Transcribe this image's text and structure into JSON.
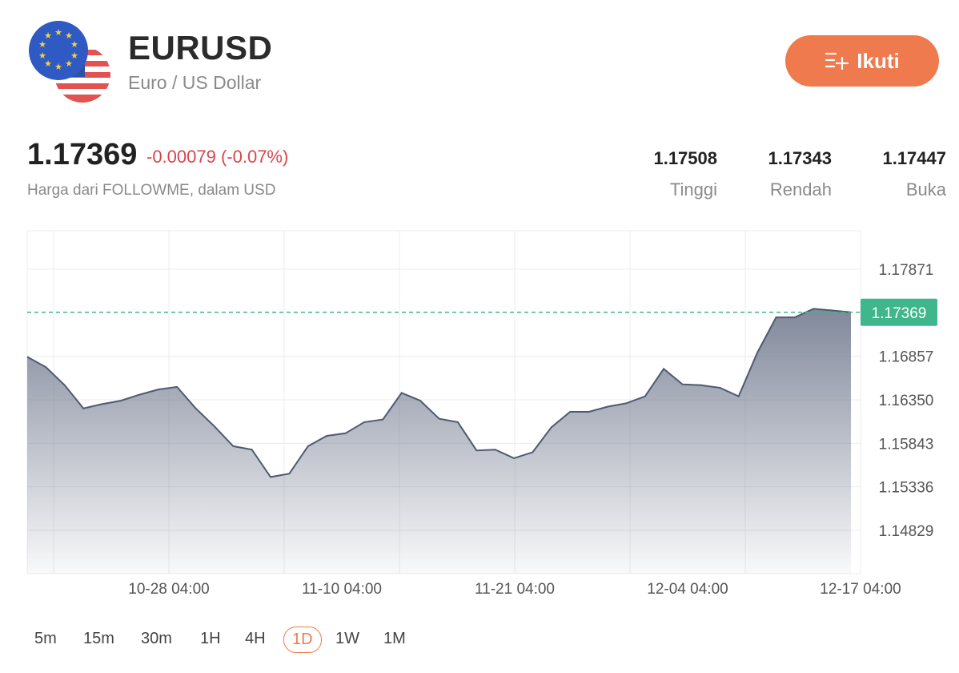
{
  "header": {
    "symbol": "EURUSD",
    "name": "Euro / US Dollar",
    "follow_label": "Ikuti"
  },
  "quote": {
    "price": "1.17369",
    "change": "-0.00079 (-0.07%)",
    "source": "Harga dari FOLLOWME, dalam USD"
  },
  "stats": [
    {
      "value": "1.17508",
      "label": "Tinggi"
    },
    {
      "value": "1.17343",
      "label": "Rendah"
    },
    {
      "value": "1.17447",
      "label": "Buka"
    }
  ],
  "timeframes": {
    "items": [
      "5m",
      "15m",
      "30m",
      "1H",
      "4H",
      "1D",
      "1W",
      "1M"
    ],
    "selected": "1D"
  },
  "colors": {
    "accent": "#ef7a4e",
    "negative": "#d9454b",
    "price_line": "#3fb68b",
    "series_line": "#4e5a70"
  },
  "chart_data": {
    "type": "area",
    "series": [
      {
        "values": [
          1.1685,
          1.1673,
          1.1652,
          1.1625,
          1.163,
          1.1634,
          1.1641,
          1.1647,
          1.165,
          1.1625,
          1.1604,
          1.1581,
          1.1577,
          1.1545,
          1.1549,
          1.1581,
          1.1593,
          1.1596,
          1.1609,
          1.1612,
          1.1643,
          1.1634,
          1.1613,
          1.1609,
          1.1576,
          1.1577,
          1.1567,
          1.1574,
          1.1603,
          1.1621,
          1.1621,
          1.1627,
          1.1631,
          1.1639,
          1.1671,
          1.1653,
          1.1652,
          1.1649,
          1.1639,
          1.169,
          1.1731,
          1.1731,
          1.1741,
          1.1739,
          1.1737
        ]
      }
    ],
    "current_price": 1.17369,
    "current_price_label": "1.17369",
    "y_ticks": [
      "1.17871",
      "1.16857",
      "1.16350",
      "1.15843",
      "1.15336",
      "1.14829"
    ],
    "y_tick_values": [
      1.17871,
      1.16857,
      1.1635,
      1.15843,
      1.15336,
      1.14829
    ],
    "x_ticks": [
      "10-28 04:00",
      "11-10 04:00",
      "11-21 04:00",
      "12-04 04:00",
      "12-17 04:00"
    ],
    "x_tick_index": [
      8,
      17,
      26,
      35,
      44
    ],
    "grid": true
  }
}
